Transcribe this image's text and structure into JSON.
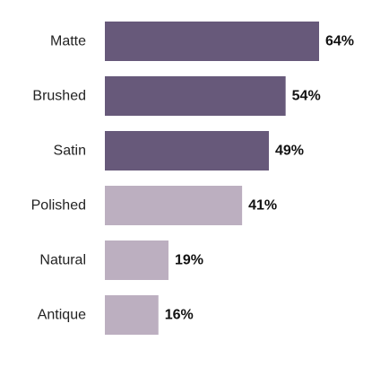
{
  "chart_data": {
    "type": "bar",
    "orientation": "horizontal",
    "title": "",
    "xlabel": "",
    "ylabel": "",
    "grid": false,
    "categories": [
      "Matte",
      "Brushed",
      "Satin",
      "Polished",
      "Natural",
      "Antique"
    ],
    "values": [
      64,
      54,
      49,
      41,
      19,
      16
    ],
    "value_labels": [
      "64%",
      "54%",
      "49%",
      "41%",
      "19%",
      "16%"
    ],
    "unit": "%",
    "xlim": [
      0,
      64
    ],
    "colors": {
      "highlight": "#67597a",
      "muted": "#bcafc0"
    },
    "bar_colors": [
      "highlight",
      "highlight",
      "highlight",
      "muted",
      "muted",
      "muted"
    ]
  }
}
